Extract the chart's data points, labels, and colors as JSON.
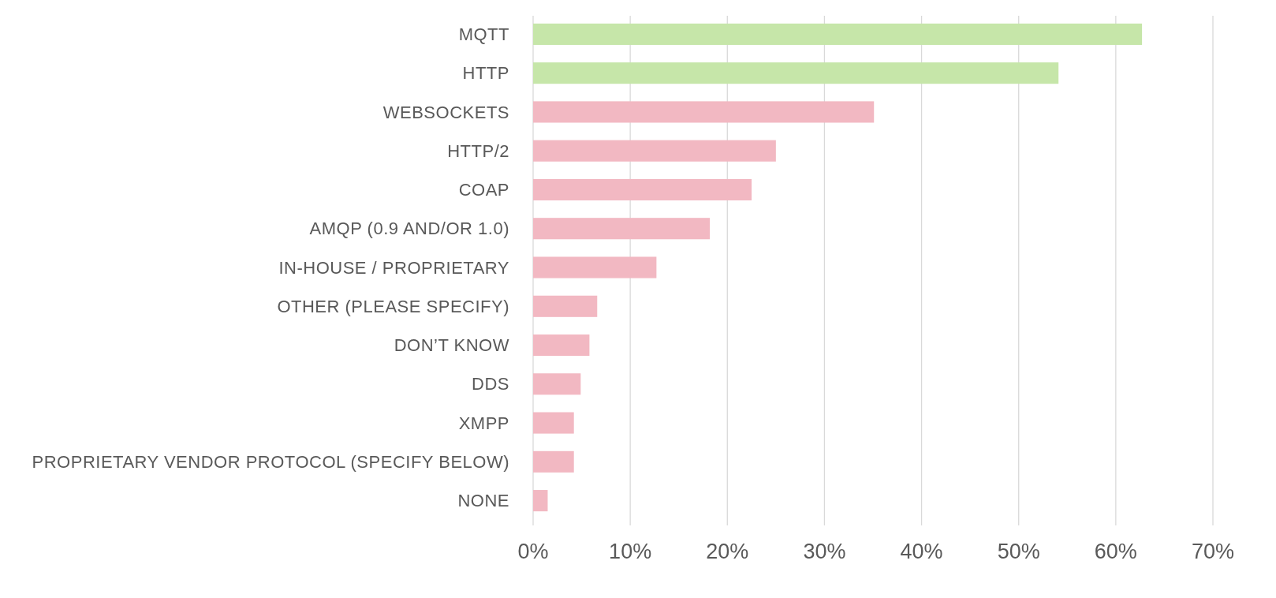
{
  "chart_data": {
    "type": "bar",
    "orientation": "horizontal",
    "categories": [
      "MQTT",
      "HTTP",
      "WEBSOCKETS",
      "HTTP/2",
      "COAP",
      "AMQP (0.9 AND/OR 1.0)",
      "IN-HOUSE / PROPRIETARY",
      "OTHER (PLEASE SPECIFY)",
      "DON’T KNOW",
      "DDS",
      "XMPP",
      "PROPRIETARY VENDOR PROTOCOL (SPECIFY BELOW)",
      "NONE"
    ],
    "values": [
      62.7,
      54.1,
      35.1,
      25.0,
      22.5,
      18.2,
      12.7,
      6.6,
      5.8,
      4.9,
      4.2,
      4.2,
      1.5
    ],
    "colors": [
      "#c6e6a9",
      "#c6e6a9",
      "#f2b8c2",
      "#f2b8c2",
      "#f2b8c2",
      "#f2b8c2",
      "#f2b8c2",
      "#f2b8c2",
      "#f2b8c2",
      "#f2b8c2",
      "#f2b8c2",
      "#f2b8c2",
      "#f2b8c2"
    ],
    "xlim": [
      0,
      70
    ],
    "xticks": [
      {
        "value": 0,
        "label": "0%"
      },
      {
        "value": 10,
        "label": "10%"
      },
      {
        "value": 20,
        "label": "20%"
      },
      {
        "value": 30,
        "label": "30%"
      },
      {
        "value": 40,
        "label": "40%"
      },
      {
        "value": 50,
        "label": "50%"
      },
      {
        "value": 60,
        "label": "60%"
      },
      {
        "value": 70,
        "label": "70%"
      }
    ],
    "grid": "x"
  }
}
